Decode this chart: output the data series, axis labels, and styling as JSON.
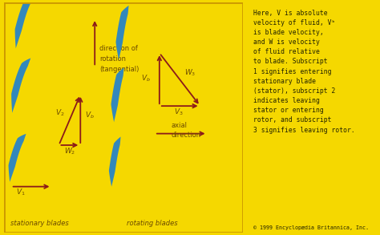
{
  "bg_color": "#F5D800",
  "diagram_bg": "#F0E060",
  "blade_color": "#3388BB",
  "arrow_color": "#8B1A1A",
  "label_color": "#6B4A00",
  "dark_text": "#222200",
  "fig_width": 4.74,
  "fig_height": 2.93,
  "right_text_line1": "Here, ",
  "right_text": "Here, V is absolute\nvelocity of fluid, Vᵇ\nis blade velocity,\nand W is velocity\nof fluid relative\nto blade. Subscript\n1 signifies entering\nstationary blade\n(stator), subscript 2\nindicates leaving\nstator or entering\nrotor, and subscript\n3 signifies leaving rotor.",
  "copyright": "© 1999 Encyclopædia Britannica, Inc.",
  "stationary_label": "stationary blades",
  "rotating_label": "rotating blades",
  "rot_label_line1": "direction of",
  "rot_label_line2": "rotation",
  "rot_label_line3": "(tangential)",
  "axial_label_line1": "axial",
  "axial_label_line2": "direction",
  "border_color": "#CC9900",
  "border_width": 4
}
